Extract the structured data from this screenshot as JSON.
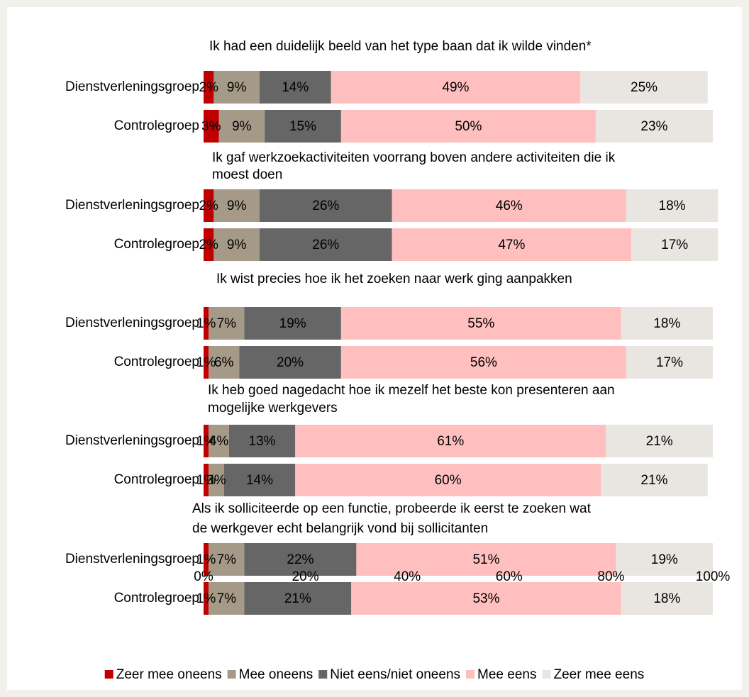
{
  "chart_data": {
    "type": "stacked-barh",
    "group_titles": [
      [
        "Ik had een duidelijk beeld van het type baan dat ik wilde vinden*"
      ],
      [
        "Ik gaf werkzoekactiviteiten voorrang boven andere activiteiten die ik",
        "moest doen"
      ],
      [
        "Ik wist precies hoe ik het zoeken naar werk ging aanpakken"
      ],
      [
        "Ik heb goed nagedacht hoe ik mezelf het beste kon presenteren aan",
        "mogelijke werkgevers"
      ],
      [
        "Als ik solliciteerde op een functie, probeerde ik eerst te zoeken wat",
        "de werkgever echt belangrijk vond bij sollicitanten"
      ]
    ],
    "categories": [
      "Dienstverleningsgroep",
      "Controlegroep",
      "Dienstverleningsgroep",
      "Controlegroep",
      "Dienstverleningsgroep",
      "Controlegroep",
      "Dienstverleningsgroep",
      "Controlegroep",
      "Dienstverleningsgroep",
      "Controlegroep"
    ],
    "series": [
      {
        "name": "Zeer mee oneens",
        "color": "#c00000",
        "values": [
          2,
          3,
          2,
          2,
          1,
          1,
          1,
          1,
          1,
          1
        ],
        "value_labels": [
          "2%",
          "3%",
          "2%",
          "2%",
          "1%",
          "1%",
          "1%",
          "1%",
          "1%",
          "1%"
        ]
      },
      {
        "name": "Mee oneens",
        "color": "#a49a87",
        "values": [
          9,
          9,
          9,
          9,
          7,
          6,
          4,
          3,
          7,
          7
        ],
        "value_labels": [
          "9%",
          "9%",
          "9%",
          "9%",
          "7%",
          "6%",
          "4%",
          "3%",
          "7%",
          "7%"
        ]
      },
      {
        "name": "Niet eens/niet oneens",
        "color": "#666666",
        "values": [
          14,
          15,
          26,
          26,
          19,
          20,
          13,
          14,
          22,
          21
        ],
        "value_labels": [
          "14%",
          "15%",
          "26%",
          "26%",
          "19%",
          "20%",
          "13%",
          "14%",
          "22%",
          "21%"
        ]
      },
      {
        "name": "Mee eens",
        "color": "#ffbfbf",
        "values": [
          49,
          50,
          46,
          47,
          55,
          56,
          61,
          60,
          51,
          53
        ],
        "value_labels": [
          "49%",
          "50%",
          "46%",
          "47%",
          "55%",
          "56%",
          "61%",
          "60%",
          "51%",
          "53%"
        ]
      },
      {
        "name": "Zeer mee eens",
        "color": "#e9e6e2",
        "values": [
          25,
          23,
          18,
          17,
          18,
          17,
          21,
          21,
          19,
          18
        ],
        "value_labels": [
          "25%",
          "23%",
          "18%",
          "17%",
          "18%",
          "17%",
          "21%",
          "21%",
          "19%",
          "18%"
        ]
      }
    ],
    "xlim": [
      0,
      100
    ],
    "xticks": [
      {
        "value": 0,
        "label": "0%"
      },
      {
        "value": 20,
        "label": "20%"
      },
      {
        "value": 40,
        "label": "40%"
      },
      {
        "value": 60,
        "label": "60%"
      },
      {
        "value": 80,
        "label": "80%"
      },
      {
        "value": 100,
        "label": "100%"
      }
    ],
    "legend": "bottom"
  }
}
